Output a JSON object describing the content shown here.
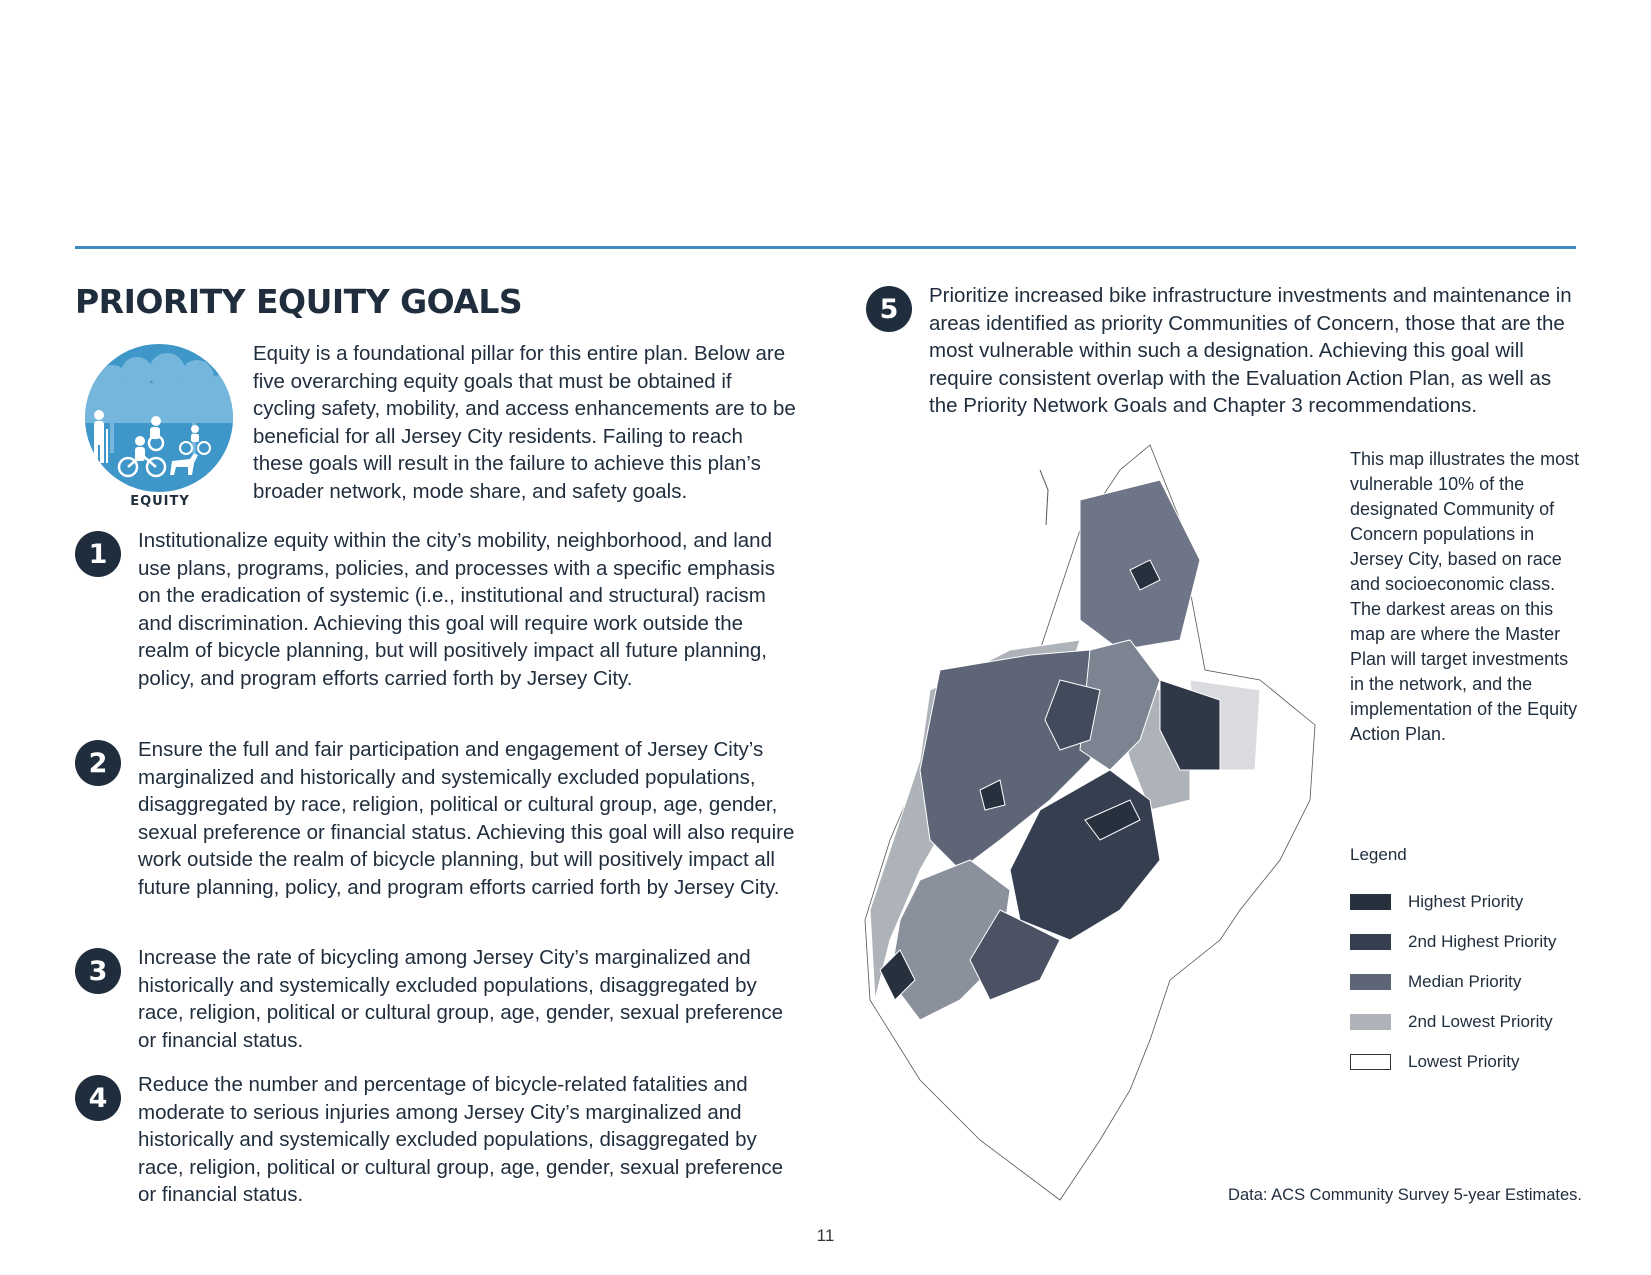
{
  "page": {
    "title": "PRIORITY EQUITY GOALS",
    "page_number": "11"
  },
  "equity_icon": {
    "label": "EQUITY",
    "color": "#3f96c8"
  },
  "intro": "Equity is a foundational pillar for this entire plan. Below are five overarching equity goals that must be obtained if cycling safety, mobility, and access enhancements are to be beneficial for all Jersey City residents. Failing to reach these goals will result in the failure to achieve this plan’s broader network, mode share, and safety goals.",
  "goals": [
    {
      "number": "1",
      "text": "Institutionalize equity within the city’s mobility, neighborhood, and land use plans, programs, policies, and processes with a specific emphasis on the eradication of systemic (i.e., institutional and structural) racism and discrimination. Achieving this goal will require work outside the realm of bicycle planning, but will positively impact all future planning, policy, and program efforts carried forth by Jersey City."
    },
    {
      "number": "2",
      "text": "Ensure the full and fair participation and engagement of Jersey City’s marginalized and historically and systemically excluded populations, disaggregated by race, religion, political or cultural group, age, gender, sexual preference or financial status. Achieving this goal will also require work outside the realm of bicycle planning, but will positively impact all future planning, policy, and program efforts carried forth by Jersey City."
    },
    {
      "number": "3",
      "text": "Increase the rate of bicycling among Jersey City’s marginalized and historically and systemically excluded populations, disaggregated by race, religion, political or cultural group, age, gender, sexual preference or financial status."
    },
    {
      "number": "4",
      "text": "Reduce the number and percentage of bicycle-related fatalities and moderate to serious injuries among Jersey City’s marginalized and historically and systemically excluded populations, disaggregated by race, religion, political or cultural group, age, gender, sexual preference or financial status."
    },
    {
      "number": "5",
      "text": "Prioritize increased bike infrastructure investments and maintenance in areas identified as priority Communities of Concern, those that are the most vulnerable within such a designation. Achieving this goal will require consistent overlap with the Evaluation Action Plan, as well as the Priority Network Goals and Chapter 3 recommendations."
    }
  ],
  "map": {
    "caption": "This map illustrates the most vulnerable 10% of the designated Community of Concern populations in Jersey City, based on race and socioeconomic class. The darkest areas on this map are where the Master Plan will target investments in the network, and the implementation of the Equity Action Plan.",
    "legend_title": "Legend",
    "legend": [
      {
        "label": "Highest Priority",
        "color": "#27303d"
      },
      {
        "label": "2nd Highest Priority",
        "color": "#363f4f"
      },
      {
        "label": "Median Priority",
        "color": "#5d6576"
      },
      {
        "label": "2nd Lowest Priority",
        "color": "#aeb2b9"
      },
      {
        "label": "Lowest Priority",
        "color": "#ffffff"
      }
    ],
    "data_source": "Data: ACS Community Survey 5-year Estimates."
  }
}
